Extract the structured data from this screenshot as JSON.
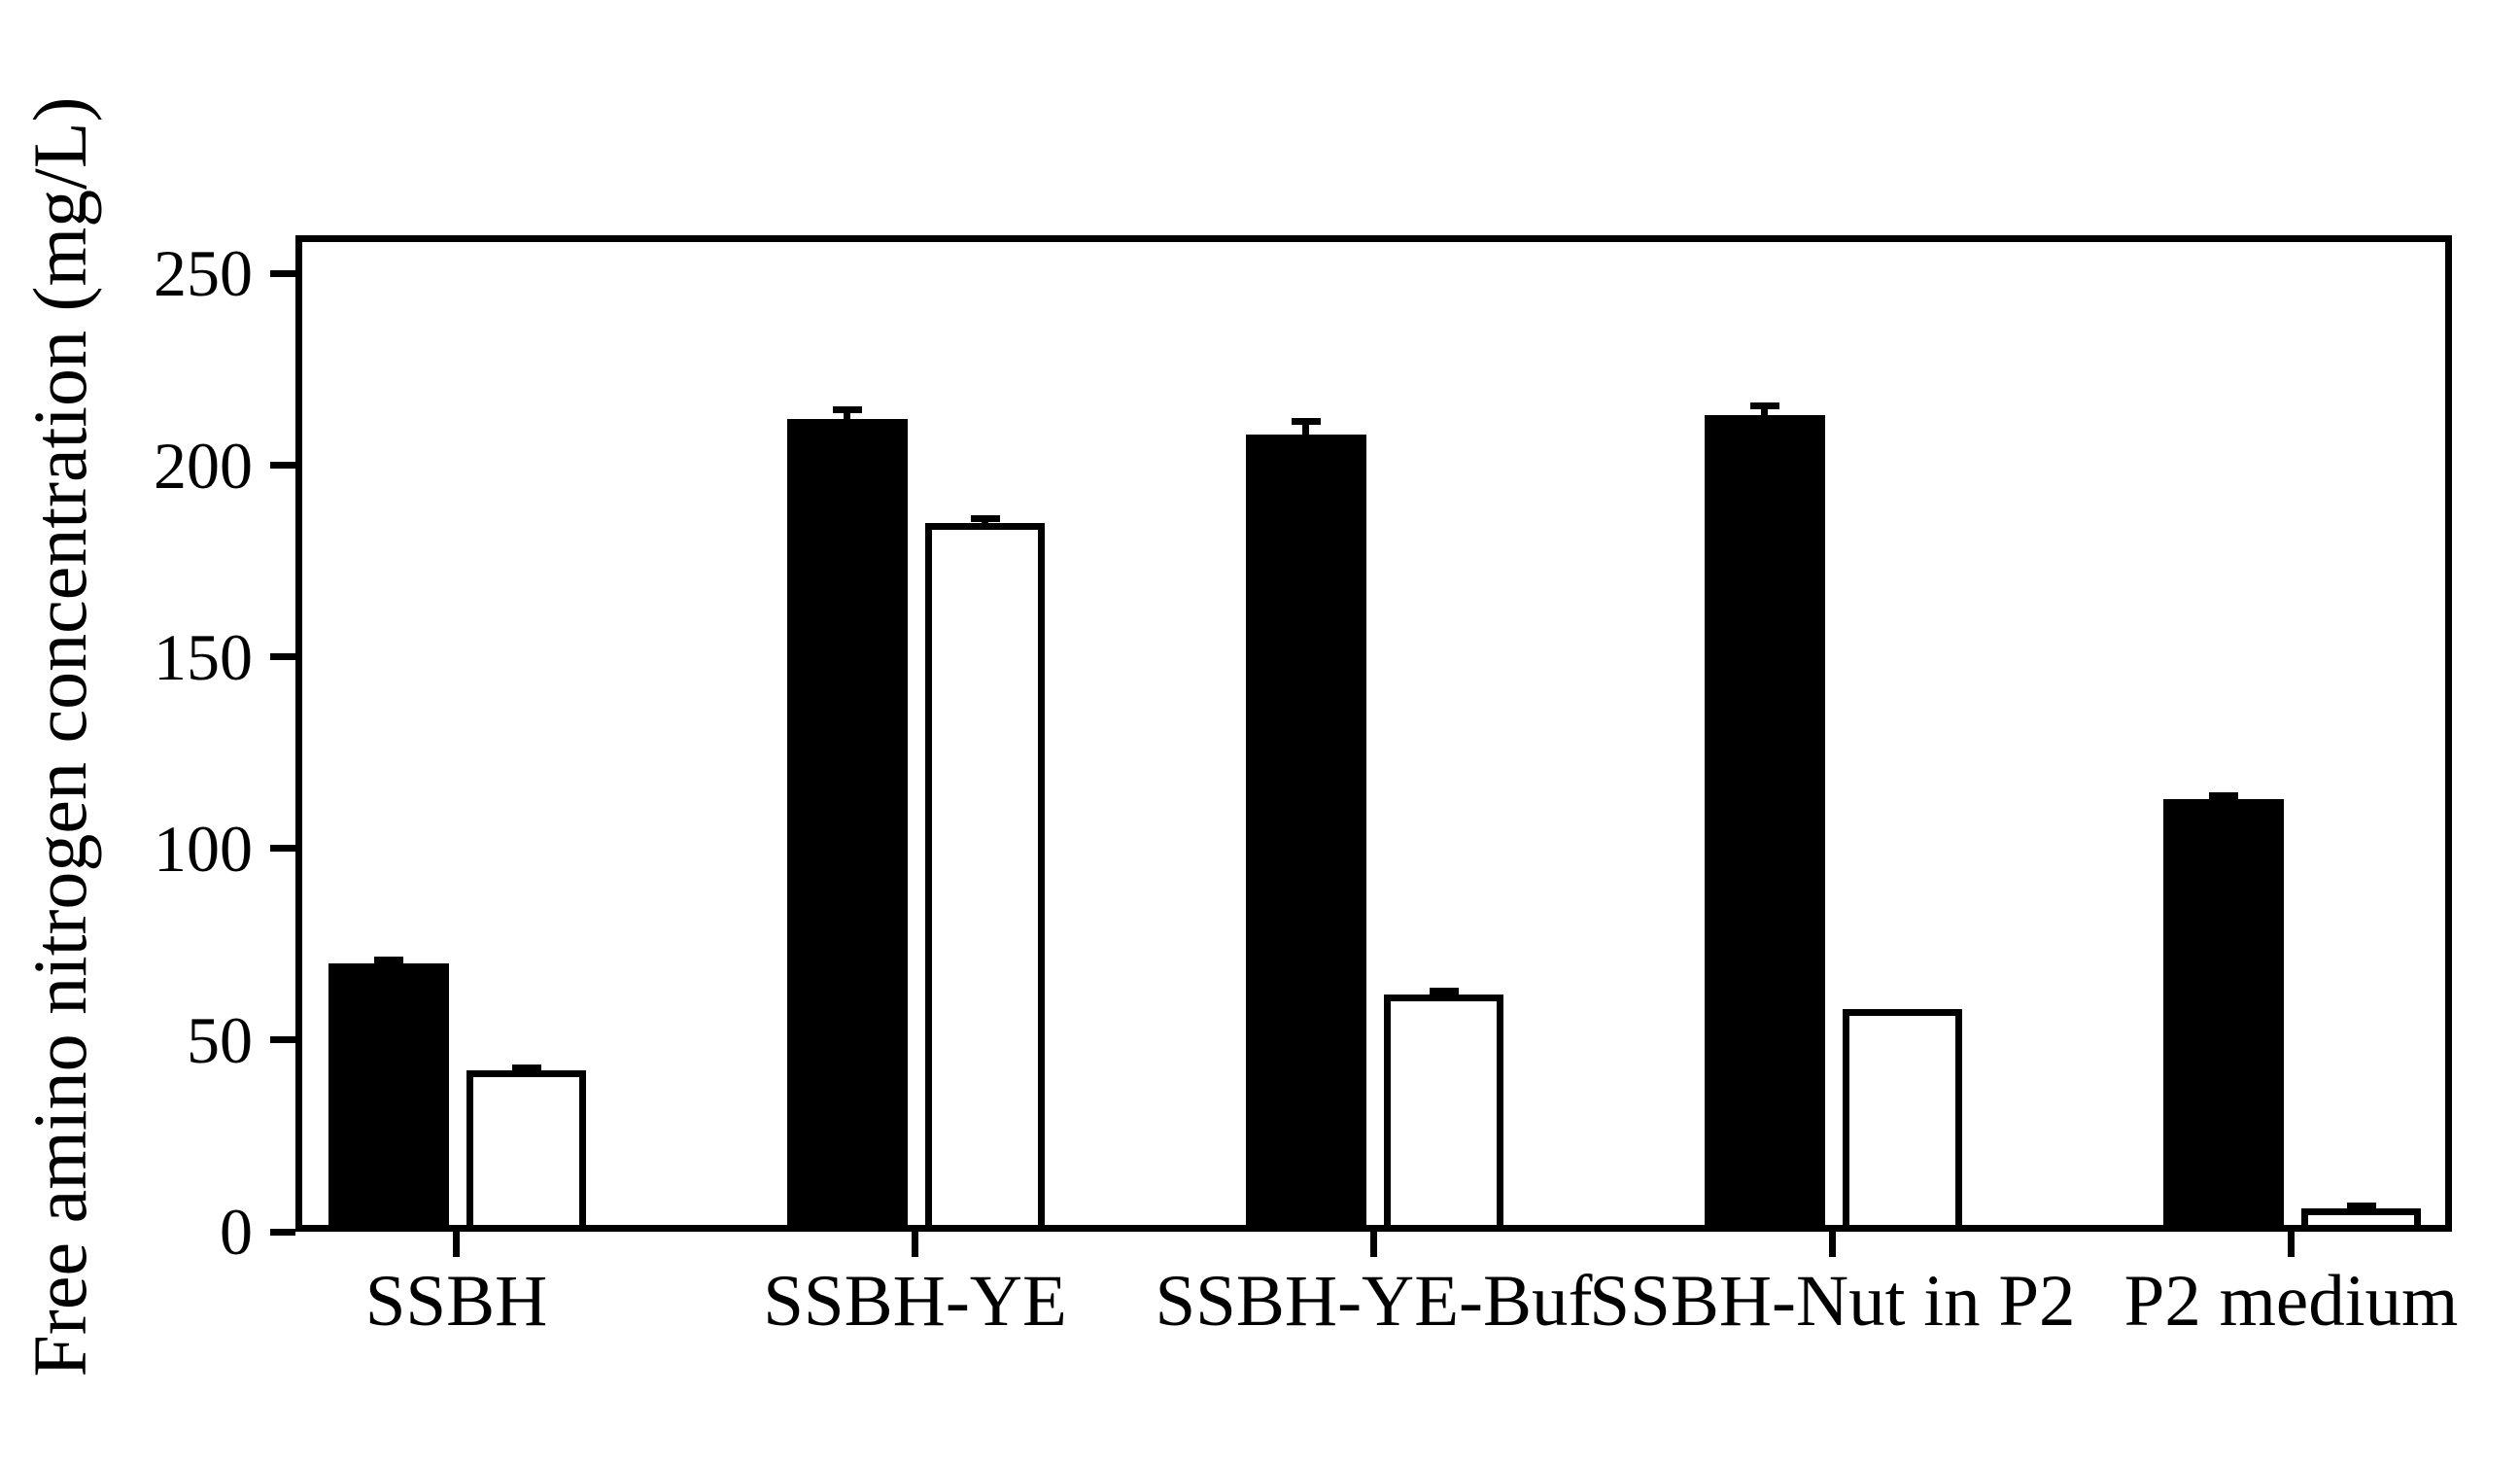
{
  "figure": {
    "background": "#ffffff",
    "ink": "#000000"
  },
  "chart_data": {
    "type": "bar",
    "title": "",
    "xlabel": "",
    "ylabel": "Free amino nitrogen concentration (mg/L)",
    "categories": [
      "SSBH",
      "SSBH-YE",
      "SSBH-YE-Buf",
      "SSBH-Nut in P2",
      "P2 medium"
    ],
    "series": [
      {
        "name": "black",
        "fill": "#000000",
        "values": [
          70,
          212,
          208,
          213,
          113
        ],
        "errors_up": [
          0.8,
          2.5,
          3.5,
          2.5,
          0.8
        ]
      },
      {
        "name": "white",
        "fill": "#ffffff",
        "values": [
          42,
          185,
          62,
          58,
          6
        ],
        "errors_up": [
          0.8,
          1,
          0.8,
          0,
          0.8
        ]
      }
    ],
    "yticks": [
      0,
      50,
      100,
      150,
      200,
      250
    ],
    "ylim": [
      0,
      260
    ],
    "grid": false,
    "legend": "none",
    "error_bars": "upper only, capped"
  }
}
